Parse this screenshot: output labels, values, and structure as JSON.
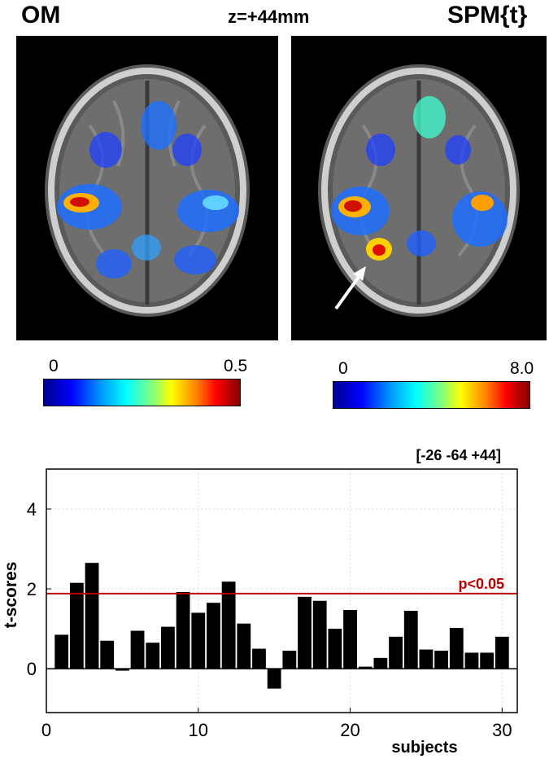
{
  "panels": {
    "om_label": "OM",
    "spm_label": "SPM{t}",
    "slice_label": "z=+44mm"
  },
  "colorbars": {
    "om": {
      "min": "0",
      "max": "0.5"
    },
    "spm": {
      "min": "0",
      "max": "8.0"
    }
  },
  "colors": {
    "bar": "#000000",
    "threshold": "#c00000",
    "grid": "#d9d9d9"
  },
  "chart_data": {
    "type": "bar",
    "title": "[-26 -64 +44]",
    "xlabel": "subjects",
    "ylabel": "t-scores",
    "xlim": [
      0,
      31
    ],
    "ylim": [
      -1.1,
      5
    ],
    "xticks": [
      0,
      10,
      20,
      30
    ],
    "yticks": [
      0,
      2,
      4
    ],
    "grid": true,
    "x": [
      1,
      2,
      3,
      4,
      5,
      6,
      7,
      8,
      9,
      10,
      11,
      12,
      13,
      14,
      15,
      16,
      17,
      18,
      19,
      20,
      21,
      22,
      23,
      24,
      25,
      26,
      27,
      28,
      29,
      30
    ],
    "values": [
      0.85,
      2.15,
      2.65,
      0.7,
      -0.05,
      0.95,
      0.65,
      1.05,
      1.92,
      1.4,
      1.65,
      2.18,
      1.13,
      0.5,
      -0.5,
      0.45,
      1.8,
      1.7,
      1.0,
      1.47,
      0.05,
      0.27,
      0.8,
      1.45,
      0.48,
      0.45,
      1.02,
      0.4,
      0.4,
      0.8
    ],
    "threshold": {
      "value": 1.88,
      "label": "p<0.05"
    }
  }
}
